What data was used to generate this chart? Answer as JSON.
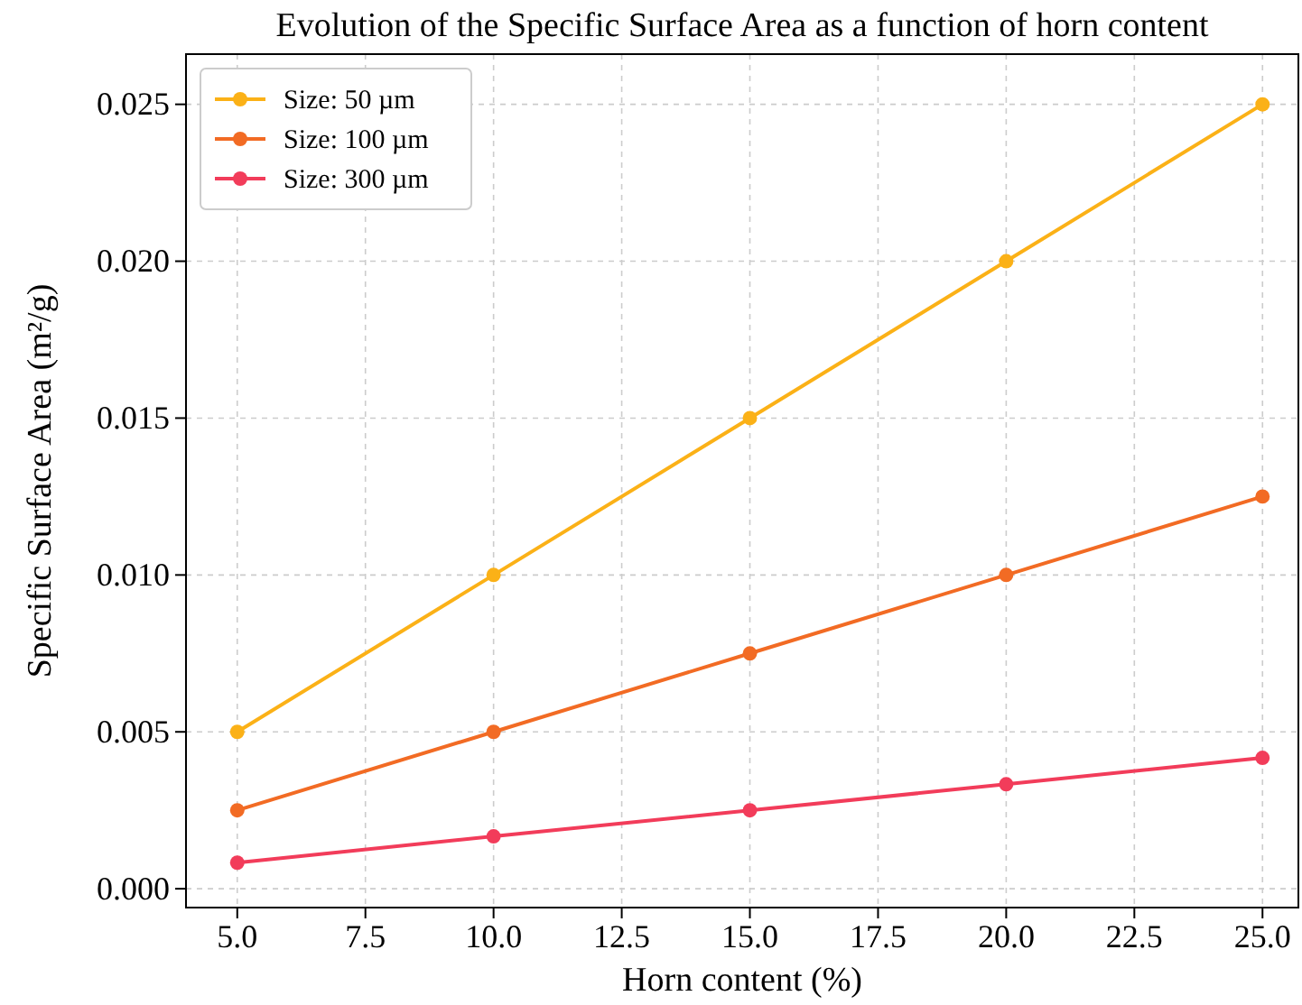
{
  "chart_data": {
    "type": "line",
    "title": "Evolution of the Specific Surface Area as a function of horn content",
    "xlabel": "Horn content (%)",
    "ylabel": "Specific Surface Area (m²/g)",
    "x": [
      5,
      10,
      15,
      20,
      25
    ],
    "series": [
      {
        "name": "Size: 50 µm",
        "color": "#fbb117",
        "values": [
          0.005,
          0.01,
          0.015,
          0.02,
          0.025
        ]
      },
      {
        "name": "Size: 100 µm",
        "color": "#f26b24",
        "values": [
          0.0025,
          0.005,
          0.0075,
          0.01,
          0.0125
        ]
      },
      {
        "name": "Size: 300 µm",
        "color": "#f23c5a",
        "values": [
          0.00083,
          0.00167,
          0.0025,
          0.00333,
          0.00417
        ]
      }
    ],
    "xlim": [
      4,
      25.7
    ],
    "ylim": [
      -0.0006,
      0.0266
    ],
    "xticks": [
      {
        "value": 5,
        "label": "5.0"
      },
      {
        "value": 7.5,
        "label": "7.5"
      },
      {
        "value": 10,
        "label": "10.0"
      },
      {
        "value": 12.5,
        "label": "12.5"
      },
      {
        "value": 15,
        "label": "15.0"
      },
      {
        "value": 17.5,
        "label": "17.5"
      },
      {
        "value": 20,
        "label": "20.0"
      },
      {
        "value": 22.5,
        "label": "22.5"
      },
      {
        "value": 25,
        "label": "25.0"
      }
    ],
    "yticks": [
      {
        "value": 0,
        "label": "0.000"
      },
      {
        "value": 0.005,
        "label": "0.005"
      },
      {
        "value": 0.01,
        "label": "0.010"
      },
      {
        "value": 0.015,
        "label": "0.015"
      },
      {
        "value": 0.02,
        "label": "0.020"
      },
      {
        "value": 0.025,
        "label": "0.025"
      }
    ],
    "grid": true,
    "legend": "top left",
    "marker": "circle",
    "line_style": "solid"
  }
}
